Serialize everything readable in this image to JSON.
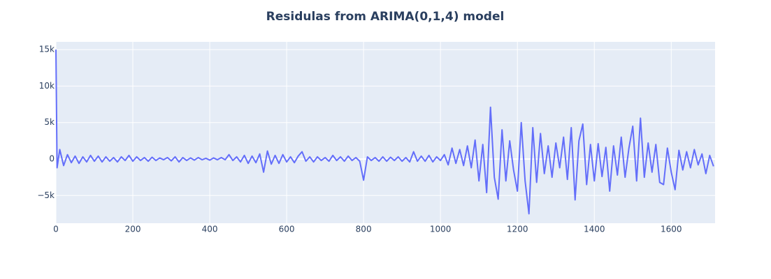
{
  "chart_data": {
    "type": "line",
    "title": "Residulas from ARIMA(0,1,4) model",
    "x": [
      0,
      3,
      10,
      20,
      30,
      40,
      50,
      60,
      70,
      80,
      90,
      100,
      110,
      120,
      130,
      140,
      150,
      160,
      170,
      180,
      190,
      200,
      210,
      220,
      230,
      240,
      250,
      260,
      270,
      280,
      290,
      300,
      310,
      320,
      330,
      340,
      350,
      360,
      370,
      380,
      390,
      400,
      410,
      420,
      430,
      440,
      450,
      460,
      470,
      480,
      490,
      500,
      510,
      520,
      530,
      540,
      550,
      560,
      570,
      580,
      590,
      600,
      610,
      620,
      630,
      640,
      650,
      660,
      670,
      680,
      690,
      700,
      710,
      720,
      730,
      740,
      750,
      760,
      770,
      780,
      790,
      800,
      810,
      820,
      830,
      840,
      850,
      860,
      870,
      880,
      890,
      900,
      910,
      920,
      930,
      940,
      950,
      960,
      970,
      980,
      990,
      1000,
      1010,
      1020,
      1030,
      1040,
      1050,
      1060,
      1070,
      1080,
      1090,
      1100,
      1110,
      1120,
      1130,
      1140,
      1150,
      1160,
      1170,
      1180,
      1190,
      1200,
      1210,
      1220,
      1230,
      1240,
      1250,
      1260,
      1270,
      1280,
      1290,
      1300,
      1310,
      1320,
      1330,
      1340,
      1350,
      1360,
      1370,
      1380,
      1390,
      1400,
      1410,
      1420,
      1430,
      1440,
      1450,
      1460,
      1470,
      1480,
      1490,
      1500,
      1510,
      1520,
      1530,
      1540,
      1550,
      1560,
      1570,
      1580,
      1590,
      1600,
      1610,
      1620,
      1630,
      1640,
      1650,
      1660,
      1670,
      1680,
      1690,
      1700,
      1710
    ],
    "series": [
      {
        "color": "#636efa",
        "values": [
          15000,
          -1200,
          1300,
          -900,
          600,
          -500,
          400,
          -600,
          300,
          -400,
          500,
          -300,
          400,
          -400,
          300,
          -300,
          200,
          -400,
          300,
          -200,
          500,
          -300,
          300,
          -200,
          200,
          -300,
          250,
          -200,
          150,
          -100,
          200,
          -250,
          300,
          -400,
          200,
          -200,
          150,
          -150,
          200,
          -100,
          100,
          -150,
          150,
          -100,
          200,
          -100,
          600,
          -200,
          300,
          -400,
          500,
          -600,
          400,
          -500,
          700,
          -1800,
          1100,
          -700,
          500,
          -600,
          600,
          -400,
          300,
          -500,
          400,
          1000,
          -300,
          300,
          -400,
          300,
          -200,
          200,
          -300,
          500,
          -200,
          300,
          -300,
          400,
          -200,
          200,
          -300,
          -2900,
          300,
          -200,
          200,
          -300,
          300,
          -300,
          250,
          -200,
          300,
          -300,
          200,
          -400,
          1000,
          -300,
          400,
          -300,
          500,
          -400,
          300,
          -200,
          600,
          -800,
          1500,
          -600,
          1300,
          -900,
          1800,
          -1200,
          2600,
          -3000,
          2000,
          -4600,
          7100,
          -2500,
          -5500,
          4000,
          -3000,
          2500,
          -1500,
          -4400,
          5000,
          -3000,
          -7500,
          4300,
          -3200,
          3500,
          -2000,
          1800,
          -2500,
          2200,
          -1200,
          3000,
          -2800,
          4300,
          -5600,
          2500,
          4800,
          -3500,
          2000,
          -3000,
          2100,
          -2400,
          1600,
          -4400,
          1800,
          -2200,
          3000,
          -2500,
          1500,
          4500,
          -3000,
          5600,
          -2500,
          2200,
          -1800,
          2000,
          -3200,
          -3500,
          1500,
          -1800,
          -4200,
          1200,
          -1500,
          1000,
          -1200,
          1300,
          -800,
          700,
          -2000,
          500,
          -1000
        ]
      }
    ],
    "xlim": [
      0,
      1714
    ],
    "ylim": [
      -8795,
      16060
    ],
    "xticks": [
      0,
      200,
      400,
      600,
      800,
      1000,
      1200,
      1400,
      1600
    ],
    "yticks": [
      {
        "value": -5000,
        "label": "−5k"
      },
      0,
      {
        "value": 5000,
        "label": "5k"
      },
      {
        "value": 10000,
        "label": "10k"
      },
      {
        "value": 15000,
        "label": "15k"
      }
    ],
    "grid": true
  }
}
